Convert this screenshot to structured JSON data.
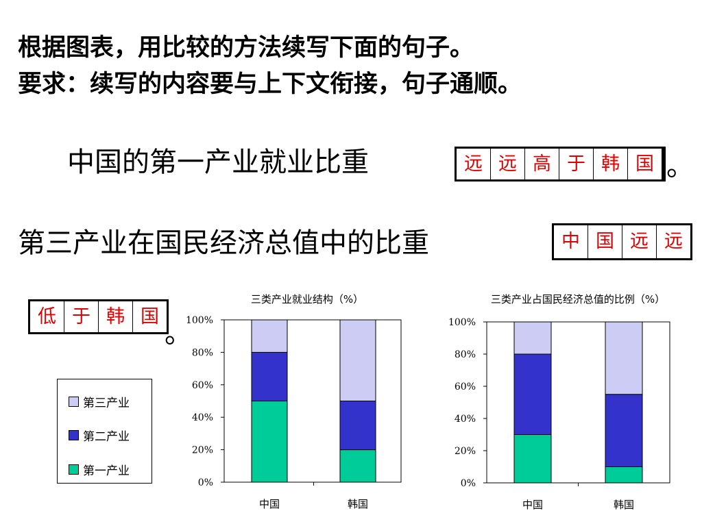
{
  "instructions": {
    "line1": "根据图表，用比较的方法续写下面的句子。",
    "line2": "要求：续写的内容要与上下文衔接，句子通顺。"
  },
  "sentence1": {
    "text": "中国的第一产业就业比重",
    "answer": [
      "远",
      "远",
      "高",
      "于",
      "韩",
      "国"
    ],
    "end": "。"
  },
  "sentence2": {
    "text": "第三产业在国民经济总值中的比重",
    "answer_a": [
      "中",
      "国",
      "远",
      "远"
    ],
    "answer_b": [
      "低",
      "于",
      "韩",
      "国"
    ],
    "end": "。"
  },
  "legend": {
    "items": [
      {
        "label": "第三产业",
        "color": "#ccccf5"
      },
      {
        "label": "第二产业",
        "color": "#3333cc"
      },
      {
        "label": "第一产业",
        "color": "#00cc99"
      }
    ]
  },
  "chart_data": [
    {
      "type": "bar",
      "stacked": true,
      "title": "三类产业就业结构（%）",
      "categories": [
        "中国",
        "韩国"
      ],
      "series": [
        {
          "name": "第一产业",
          "values": [
            50,
            20
          ],
          "color": "#00cc99"
        },
        {
          "name": "第二产业",
          "values": [
            30,
            30
          ],
          "color": "#3333cc"
        },
        {
          "name": "第三产业",
          "values": [
            20,
            50
          ],
          "color": "#ccccf5"
        }
      ],
      "yticks": [
        "0%",
        "20%",
        "40%",
        "60%",
        "80%",
        "100%"
      ],
      "ylim": [
        0,
        100
      ],
      "grid": false
    },
    {
      "type": "bar",
      "stacked": true,
      "title": "三类产业占国民经济总值的比例（%）",
      "categories": [
        "中国",
        "韩国"
      ],
      "series": [
        {
          "name": "第一产业",
          "values": [
            30,
            10
          ],
          "color": "#00cc99"
        },
        {
          "name": "第二产业",
          "values": [
            50,
            45
          ],
          "color": "#3333cc"
        },
        {
          "name": "第三产业",
          "values": [
            20,
            45
          ],
          "color": "#ccccf5"
        }
      ],
      "yticks": [
        "0%",
        "20%",
        "40%",
        "60%",
        "80%",
        "100%"
      ],
      "ylim": [
        0,
        100
      ],
      "grid": false
    }
  ]
}
